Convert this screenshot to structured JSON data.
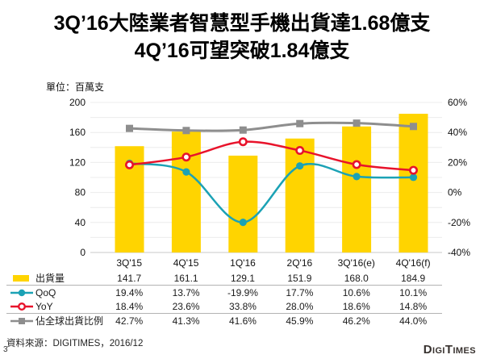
{
  "title": {
    "line1": "3Q’16大陸業者智慧型手機出貨達1.68億支",
    "line2": "4Q’16可望突破1.84億支"
  },
  "chart_data": {
    "type": "combo-bar-line",
    "unit_label": "單位：百萬支",
    "categories": [
      "3Q'15",
      "4Q'15",
      "1Q'16",
      "2Q'16",
      "3Q'16(e)",
      "4Q'16(f)"
    ],
    "series": [
      {
        "name": "出貨量",
        "type": "bar",
        "axis": "left",
        "swatch": "bar",
        "color": "#FFD400",
        "values": [
          141.7,
          161.1,
          129.1,
          151.9,
          168.0,
          184.9
        ],
        "display": [
          "141.7",
          "161.1",
          "129.1",
          "151.9",
          "168.0",
          "184.9"
        ]
      },
      {
        "name": "QoQ",
        "type": "line",
        "axis": "right",
        "swatch": "filled-circle",
        "color": "#1BA2B5",
        "values": [
          19.4,
          13.7,
          -19.9,
          17.7,
          10.6,
          10.1
        ],
        "display": [
          "19.4%",
          "13.7%",
          "-19.9%",
          "17.7%",
          "10.6%",
          "10.1%"
        ]
      },
      {
        "name": "YoY",
        "type": "line",
        "axis": "right",
        "swatch": "open-circle",
        "color": "#E8132B",
        "values": [
          18.4,
          23.6,
          33.8,
          28.0,
          18.6,
          14.8
        ],
        "display": [
          "18.4%",
          "23.6%",
          "33.8%",
          "28.0%",
          "18.6%",
          "14.8%"
        ]
      },
      {
        "name": "佔全球出貨比例",
        "type": "line",
        "axis": "right",
        "swatch": "filled-square",
        "color": "#8E8E8E",
        "values": [
          42.7,
          41.3,
          41.6,
          45.9,
          46.2,
          44.0
        ],
        "display": [
          "42.7%",
          "41.3%",
          "41.6%",
          "45.9%",
          "46.2%",
          "44.0%"
        ]
      }
    ],
    "left_axis": {
      "min": 0,
      "max": 200,
      "tick_step": 40,
      "ticks": [
        "200",
        "160",
        "120",
        "80",
        "40",
        "0"
      ]
    },
    "right_axis": {
      "min": -40,
      "max": 60,
      "tick_step": 20,
      "ticks": [
        "60%",
        "40%",
        "20%",
        "0%",
        "-20%",
        "-40%"
      ]
    },
    "grid": true,
    "legend_position": "table-left"
  },
  "footer": {
    "source": "資料來源：DIGITIMES，2016/12",
    "page_number": "3",
    "logo": "DIGITIMES"
  }
}
